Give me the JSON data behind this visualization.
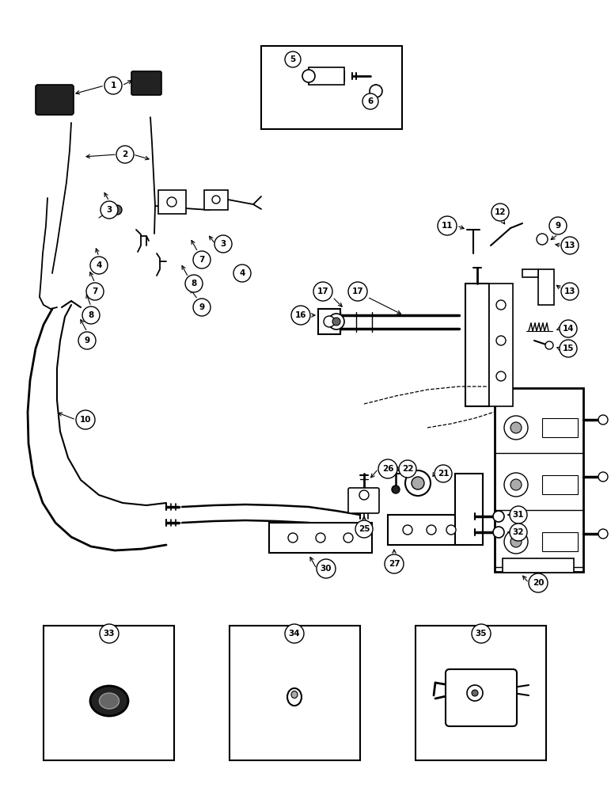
{
  "bg_color": "#ffffff",
  "fig_width": 7.72,
  "fig_height": 10.0,
  "dpi": 100,
  "black": "#000000",
  "darkgray": "#222222",
  "medgray": "#666666",
  "lightgray": "#aaaaaa"
}
